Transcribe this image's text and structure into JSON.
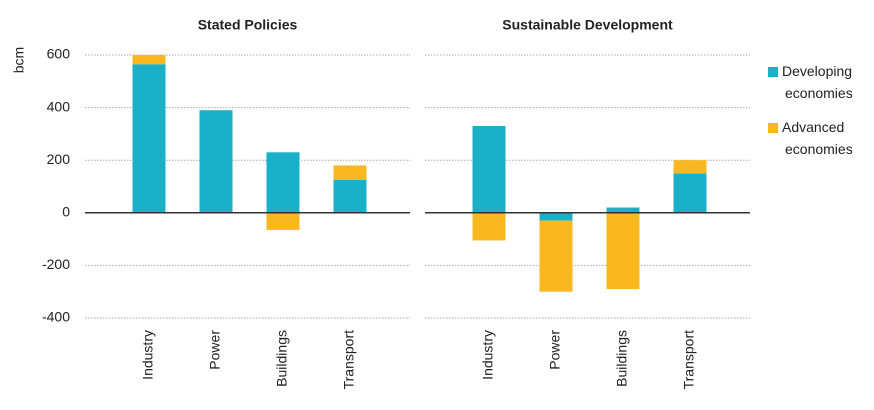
{
  "chart_data": [
    {
      "type": "bar",
      "title": "Stated Policies",
      "ylabel": "bcm",
      "categories": [
        "Industry",
        "Power",
        "Buildings",
        "Transport"
      ],
      "series": [
        {
          "name": "Developing economies",
          "color": "#1ab0c8",
          "values": [
            565,
            390,
            230,
            125
          ]
        },
        {
          "name": "Advanced economies",
          "color": "#f9b81f",
          "values": [
            35,
            0,
            -65,
            55
          ]
        }
      ],
      "ylim": [
        -400,
        600
      ],
      "yticks": [
        -400,
        -200,
        0,
        200,
        400,
        600
      ],
      "grid": true,
      "stacked": true,
      "legend": "right"
    },
    {
      "type": "bar",
      "title": "Sustainable Development",
      "categories": [
        "Industry",
        "Power",
        "Buildings",
        "Transport"
      ],
      "series": [
        {
          "name": "Developing economies",
          "color": "#1ab0c8",
          "values": [
            330,
            -30,
            20,
            150
          ]
        },
        {
          "name": "Advanced economies",
          "color": "#f9b81f",
          "values": [
            -105,
            -270,
            -290,
            50
          ]
        }
      ],
      "ylim": [
        -400,
        600
      ],
      "yticks": [
        -400,
        -200,
        0,
        200,
        400,
        600
      ],
      "grid": true,
      "stacked": true
    }
  ]
}
